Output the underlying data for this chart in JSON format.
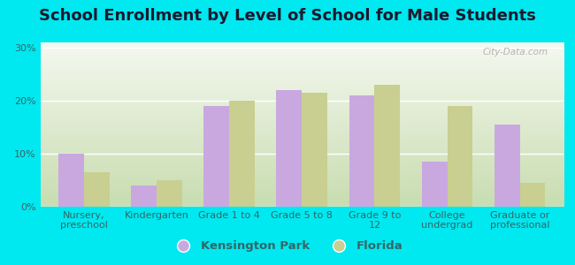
{
  "title": "School Enrollment by Level of School for Male Students",
  "categories": [
    "Nursery,\npreschool",
    "Kindergarten",
    "Grade 1 to 4",
    "Grade 5 to 8",
    "Grade 9 to\n12",
    "College\nundergrad",
    "Graduate or\nprofessional"
  ],
  "kensington_park": [
    10.0,
    4.0,
    19.0,
    22.0,
    21.0,
    8.5,
    15.5
  ],
  "florida": [
    6.5,
    5.0,
    20.0,
    21.5,
    23.0,
    19.0,
    4.5
  ],
  "bar_color_kp": "#c9a8e0",
  "bar_color_fl": "#c8cf90",
  "background_outer": "#00e8f0",
  "background_inner_top": "#f5f8f0",
  "background_inner_bottom": "#c8ddb0",
  "yticks": [
    0,
    10,
    20,
    30
  ],
  "ylim": [
    0,
    31
  ],
  "legend_label_kp": "Kensington Park",
  "legend_label_fl": "Florida",
  "bar_width": 0.35,
  "title_fontsize": 13,
  "tick_fontsize": 8,
  "legend_fontsize": 9.5,
  "axis_color": "#55aaaa",
  "tick_color": "#336666"
}
